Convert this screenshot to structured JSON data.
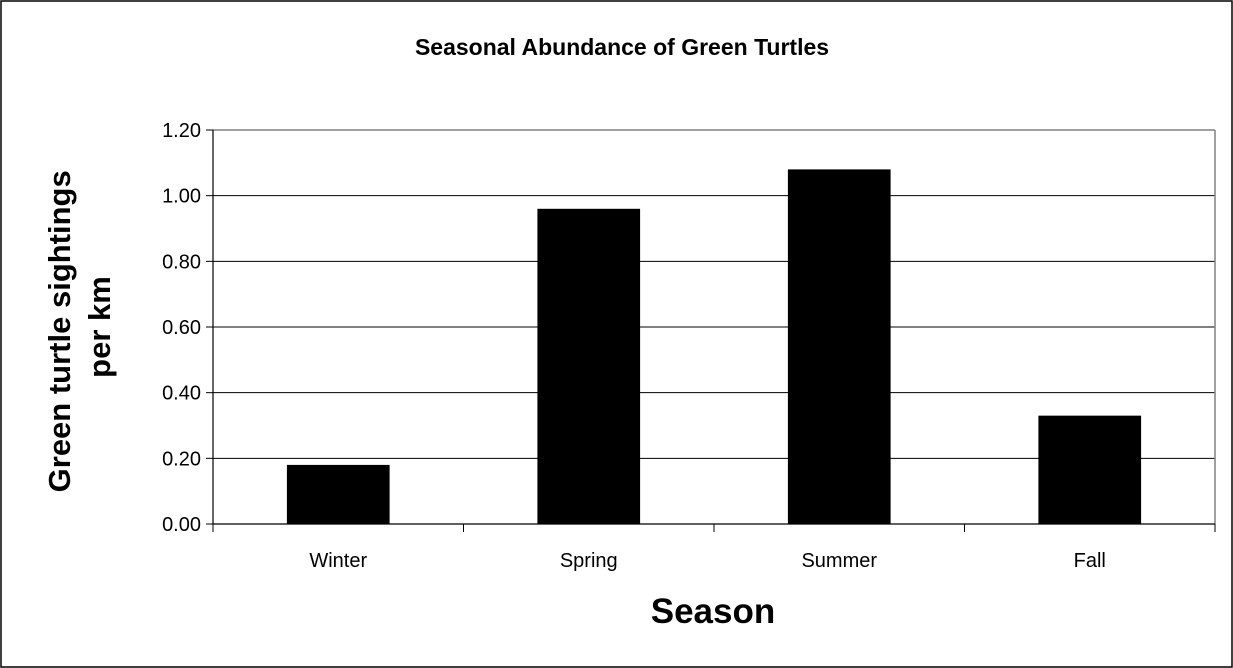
{
  "chart_data": {
    "type": "bar",
    "title": "Seasonal Abundance of Green Turtles",
    "xlabel": "Season",
    "ylabel_lines": [
      "Green turtle sightings",
      "per km"
    ],
    "categories": [
      "Winter",
      "Spring",
      "Summer",
      "Fall"
    ],
    "values": [
      0.18,
      0.96,
      1.08,
      0.33
    ],
    "ylim": [
      0,
      1.2
    ],
    "yticks": [
      "0.00",
      "0.20",
      "0.40",
      "0.60",
      "0.80",
      "1.00",
      "1.20"
    ],
    "grid": true,
    "legend": "none",
    "bar_color": "#000000",
    "grid_color": "#000000",
    "axis_color": "#808080"
  }
}
